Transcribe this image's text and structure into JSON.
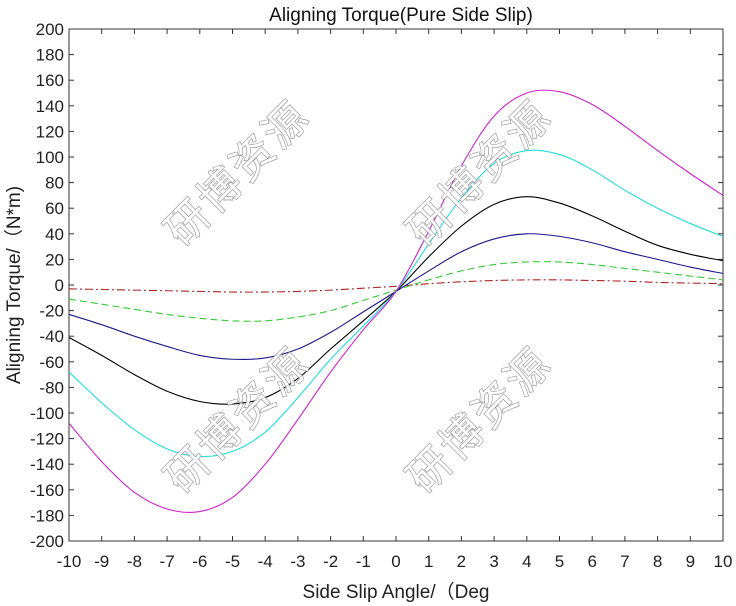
{
  "chart_data": {
    "type": "line",
    "title": "Aligning Torque(Pure Side Slip)",
    "xlabel": "Side Slip Angle/（Deg",
    "ylabel": "Aligning Torque/（N*m)",
    "xlim": [
      -10,
      10
    ],
    "ylim": [
      -200,
      200
    ],
    "xticks": [
      -10,
      -9,
      -8,
      -7,
      -6,
      -5,
      -4,
      -3,
      -2,
      -1,
      0,
      1,
      2,
      3,
      4,
      5,
      6,
      7,
      8,
      9,
      10
    ],
    "yticks": [
      200,
      180,
      160,
      140,
      120,
      100,
      80,
      60,
      40,
      20,
      0,
      -20,
      -40,
      -60,
      -80,
      -100,
      -120,
      -140,
      -160,
      -180,
      -200
    ],
    "grid": false,
    "x": [
      -10,
      -9,
      -8,
      -7,
      -6,
      -5,
      -4,
      -3,
      -2,
      -1,
      0,
      1,
      2,
      3,
      4,
      5,
      6,
      7,
      8,
      9,
      10
    ],
    "series": [
      {
        "name": "dash-dot red",
        "color": "#b22222",
        "dash": "8,3,2,3",
        "values": [
          -3,
          -3.5,
          -4,
          -4.5,
          -5,
          -5.5,
          -5.5,
          -5,
          -4,
          -2.5,
          -1,
          1,
          2.5,
          3.5,
          4,
          4,
          3.5,
          3,
          2,
          1.5,
          1
        ]
      },
      {
        "name": "dashed green",
        "color": "#33cc33",
        "dash": "7,4",
        "values": [
          -11,
          -15,
          -19,
          -23,
          -26,
          -28,
          -28,
          -25,
          -20,
          -12,
          -4,
          4,
          11,
          16,
          18,
          18,
          16,
          13,
          10,
          7,
          4
        ]
      },
      {
        "name": "solid navy",
        "color": "#1a1a8c",
        "dash": "",
        "values": [
          -23,
          -31,
          -40,
          -48,
          -55,
          -58,
          -57,
          -50,
          -37,
          -21,
          -5,
          11,
          26,
          36,
          40,
          38,
          33,
          26,
          20,
          14,
          9
        ]
      },
      {
        "name": "solid black",
        "color": "#000000",
        "dash": "",
        "values": [
          -41,
          -55,
          -70,
          -83,
          -91,
          -93,
          -88,
          -73,
          -50,
          -28,
          -5,
          22,
          46,
          63,
          69,
          64,
          54,
          42,
          31,
          24,
          19
        ]
      },
      {
        "name": "solid cyan",
        "color": "#22dddd",
        "dash": "",
        "values": [
          -68,
          -92,
          -113,
          -128,
          -134,
          -130,
          -115,
          -88,
          -58,
          -32,
          -5,
          32,
          68,
          95,
          105,
          102,
          90,
          74,
          60,
          48,
          38
        ]
      },
      {
        "name": "solid magenta",
        "color": "#cc22cc",
        "dash": "",
        "values": [
          -108,
          -138,
          -162,
          -175,
          -177,
          -166,
          -140,
          -105,
          -68,
          -35,
          -5,
          42,
          93,
          132,
          150,
          151,
          141,
          124,
          105,
          87,
          70
        ]
      }
    ]
  },
  "watermark": {
    "text": "研博资源",
    "copies": 4
  }
}
